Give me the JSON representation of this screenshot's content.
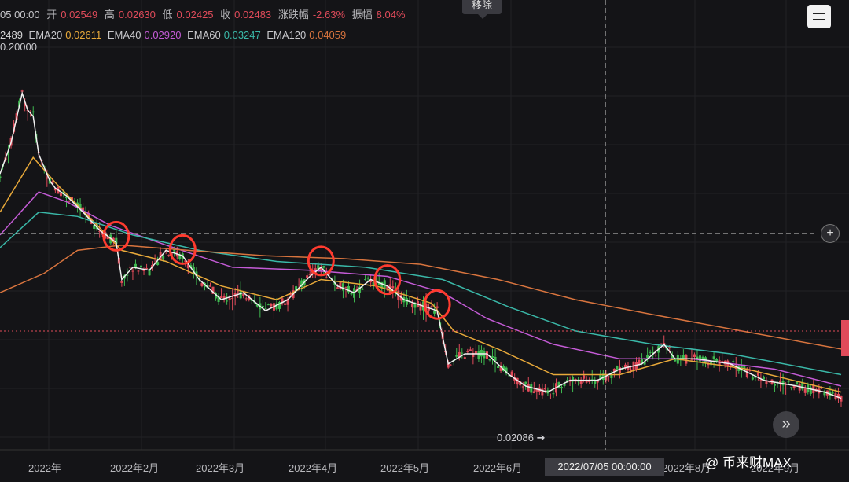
{
  "header": {
    "time": "05 00:00",
    "open_label": "开",
    "open": "0.02549",
    "high_label": "高",
    "high": "0.02630",
    "low_label": "低",
    "low": "0.02425",
    "close_label": "收",
    "close": "0.02483",
    "change_label": "涨跌幅",
    "change": "-2.63%",
    "amp_label": "振幅",
    "amp": "8.04%"
  },
  "remove_tooltip": "移除",
  "ema": [
    {
      "label": "2489",
      "value": "",
      "color": "#d8d8d8"
    },
    {
      "label": "EMA20",
      "value": "0.02611",
      "color": "#e8a93a"
    },
    {
      "label": "EMA40",
      "value": "0.02920",
      "color": "#c45bd6"
    },
    {
      "label": "EMA60",
      "value": "0.03247",
      "color": "#3ab8a8"
    },
    {
      "label": "EMA120",
      "value": "0.04059",
      "color": "#d8743e"
    }
  ],
  "chart_data": {
    "type": "line",
    "y_top_label": "0.20000",
    "x_ticks": [
      "2022年",
      "2022年2月",
      "2022年3月",
      "2022年4月",
      "2022年5月",
      "2022年6月",
      "2022年8月",
      "2022年9月"
    ],
    "crosshair_time": "2022/07/05 00:00:00",
    "low_marker": "0.02086",
    "candle_colors": {
      "up": "#3fb950",
      "down": "#e04b5a"
    },
    "price": [
      {
        "t": 0,
        "v": 0.1
      },
      {
        "t": 2,
        "v": 0.12
      },
      {
        "t": 4,
        "v": 0.16
      },
      {
        "t": 5,
        "v": 0.145
      },
      {
        "t": 6,
        "v": 0.14
      },
      {
        "t": 7,
        "v": 0.112
      },
      {
        "t": 9,
        "v": 0.096
      },
      {
        "t": 10,
        "v": 0.092
      },
      {
        "t": 12,
        "v": 0.088
      },
      {
        "t": 15,
        "v": 0.08
      },
      {
        "t": 18,
        "v": 0.072
      },
      {
        "t": 21,
        "v": 0.067
      },
      {
        "t": 22,
        "v": 0.054
      },
      {
        "t": 24,
        "v": 0.058
      },
      {
        "t": 27,
        "v": 0.057
      },
      {
        "t": 30,
        "v": 0.064
      },
      {
        "t": 33,
        "v": 0.062
      },
      {
        "t": 36,
        "v": 0.054
      },
      {
        "t": 40,
        "v": 0.048
      },
      {
        "t": 44,
        "v": 0.05
      },
      {
        "t": 48,
        "v": 0.045
      },
      {
        "t": 52,
        "v": 0.048
      },
      {
        "t": 56,
        "v": 0.055
      },
      {
        "t": 58,
        "v": 0.058
      },
      {
        "t": 61,
        "v": 0.052
      },
      {
        "t": 64,
        "v": 0.05
      },
      {
        "t": 67,
        "v": 0.054
      },
      {
        "t": 70,
        "v": 0.052
      },
      {
        "t": 73,
        "v": 0.048
      },
      {
        "t": 77,
        "v": 0.046
      },
      {
        "t": 79,
        "v": 0.045
      },
      {
        "t": 81,
        "v": 0.033
      },
      {
        "t": 84,
        "v": 0.035
      },
      {
        "t": 88,
        "v": 0.035
      },
      {
        "t": 92,
        "v": 0.031
      },
      {
        "t": 95,
        "v": 0.029
      },
      {
        "t": 99,
        "v": 0.028
      },
      {
        "t": 103,
        "v": 0.03
      },
      {
        "t": 108,
        "v": 0.03
      },
      {
        "t": 112,
        "v": 0.032
      },
      {
        "t": 116,
        "v": 0.033
      },
      {
        "t": 120,
        "v": 0.037
      },
      {
        "t": 122,
        "v": 0.034
      },
      {
        "t": 126,
        "v": 0.034
      },
      {
        "t": 132,
        "v": 0.033
      },
      {
        "t": 138,
        "v": 0.03
      },
      {
        "t": 144,
        "v": 0.029
      },
      {
        "t": 149,
        "v": 0.028
      },
      {
        "t": 152,
        "v": 0.027
      }
    ],
    "ema_series": [
      {
        "name": "EMA20",
        "color": "#e8a93a",
        "points": [
          [
            0,
            0.08
          ],
          [
            6,
            0.11
          ],
          [
            10,
            0.095
          ],
          [
            16,
            0.078
          ],
          [
            22,
            0.064
          ],
          [
            30,
            0.06
          ],
          [
            40,
            0.052
          ],
          [
            50,
            0.048
          ],
          [
            58,
            0.054
          ],
          [
            68,
            0.052
          ],
          [
            78,
            0.047
          ],
          [
            82,
            0.04
          ],
          [
            90,
            0.036
          ],
          [
            100,
            0.031
          ],
          [
            112,
            0.031
          ],
          [
            122,
            0.034
          ],
          [
            135,
            0.032
          ],
          [
            152,
            0.028
          ]
        ]
      },
      {
        "name": "EMA40",
        "color": "#c45bd6",
        "points": [
          [
            0,
            0.07
          ],
          [
            7,
            0.09
          ],
          [
            12,
            0.085
          ],
          [
            20,
            0.074
          ],
          [
            30,
            0.066
          ],
          [
            42,
            0.058
          ],
          [
            56,
            0.057
          ],
          [
            70,
            0.055
          ],
          [
            80,
            0.05
          ],
          [
            88,
            0.043
          ],
          [
            100,
            0.037
          ],
          [
            112,
            0.034
          ],
          [
            125,
            0.034
          ],
          [
            140,
            0.032
          ],
          [
            152,
            0.029
          ]
        ]
      },
      {
        "name": "EMA60",
        "color": "#3ab8a8",
        "points": [
          [
            0,
            0.065
          ],
          [
            7,
            0.08
          ],
          [
            14,
            0.078
          ],
          [
            24,
            0.07
          ],
          [
            36,
            0.064
          ],
          [
            50,
            0.06
          ],
          [
            66,
            0.058
          ],
          [
            80,
            0.054
          ],
          [
            92,
            0.046
          ],
          [
            104,
            0.04
          ],
          [
            118,
            0.037
          ],
          [
            132,
            0.035
          ],
          [
            152,
            0.031
          ]
        ]
      },
      {
        "name": "EMA120",
        "color": "#d8743e",
        "points": [
          [
            0,
            0.05
          ],
          [
            8,
            0.056
          ],
          [
            14,
            0.064
          ],
          [
            22,
            0.066
          ],
          [
            34,
            0.064
          ],
          [
            48,
            0.062
          ],
          [
            62,
            0.061
          ],
          [
            76,
            0.059
          ],
          [
            90,
            0.054
          ],
          [
            104,
            0.048
          ],
          [
            118,
            0.044
          ],
          [
            134,
            0.04
          ],
          [
            152,
            0.036
          ]
        ]
      }
    ],
    "highlight_circles": [
      21,
      33,
      58,
      70,
      79
    ],
    "current_price_line": 0.066
  },
  "watermark": "@ 币来财MAX"
}
